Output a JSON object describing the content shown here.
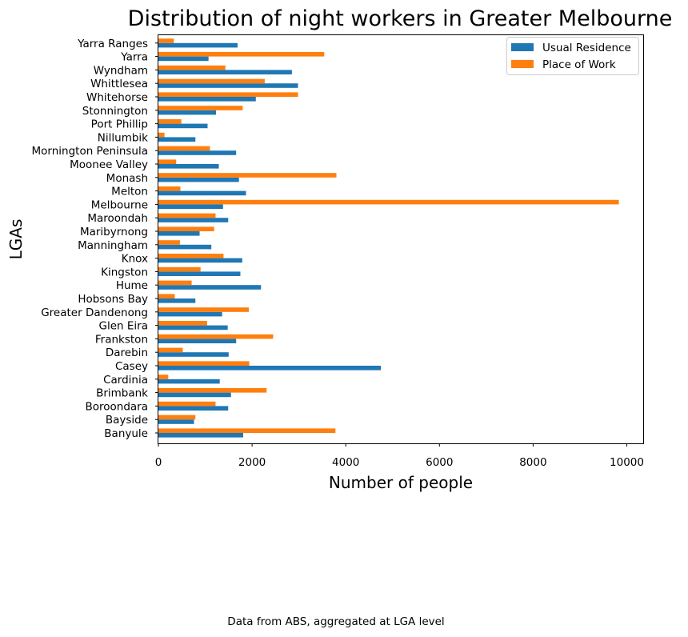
{
  "caption": "Data from ABS, aggregated at LGA level",
  "chart_data": {
    "type": "bar",
    "orientation": "horizontal",
    "title": "Distribution of night workers in Greater Melbourne",
    "xlabel": "Number of people",
    "ylabel": "LGAs",
    "xlim": [
      0,
      10350
    ],
    "xticks": [
      0,
      2000,
      4000,
      6000,
      8000,
      10000
    ],
    "legend_position": "top-right",
    "grid": false,
    "categories": [
      "Banyule",
      "Bayside",
      "Boroondara",
      "Brimbank",
      "Cardinia",
      "Casey",
      "Darebin",
      "Frankston",
      "Glen Eira",
      "Greater Dandenong",
      "Hobsons Bay",
      "Hume",
      "Kingston",
      "Knox",
      "Manningham",
      "Maribyrnong",
      "Maroondah",
      "Melbourne",
      "Melton",
      "Monash",
      "Moonee Valley",
      "Mornington Peninsula",
      "Nillumbik",
      "Port Phillip",
      "Stonnington",
      "Whitehorse",
      "Whittlesea",
      "Wyndham",
      "Yarra",
      "Yarra Ranges"
    ],
    "series": [
      {
        "name": "Usual Residence",
        "color": "#1f77b4",
        "values": [
          1810,
          760,
          1490,
          1550,
          1310,
          4750,
          1500,
          1660,
          1480,
          1360,
          790,
          2190,
          1750,
          1790,
          1130,
          880,
          1490,
          1380,
          1870,
          1720,
          1290,
          1660,
          790,
          1050,
          1230,
          2080,
          2980,
          2850,
          1070,
          1690
        ]
      },
      {
        "name": "Place of Work",
        "color": "#ff7f0e",
        "values": [
          3780,
          790,
          1220,
          2310,
          210,
          1940,
          520,
          2450,
          1040,
          1930,
          350,
          710,
          900,
          1390,
          460,
          1190,
          1220,
          9830,
          470,
          3800,
          380,
          1100,
          130,
          490,
          1800,
          2980,
          2270,
          1430,
          3540,
          330
        ]
      }
    ]
  }
}
